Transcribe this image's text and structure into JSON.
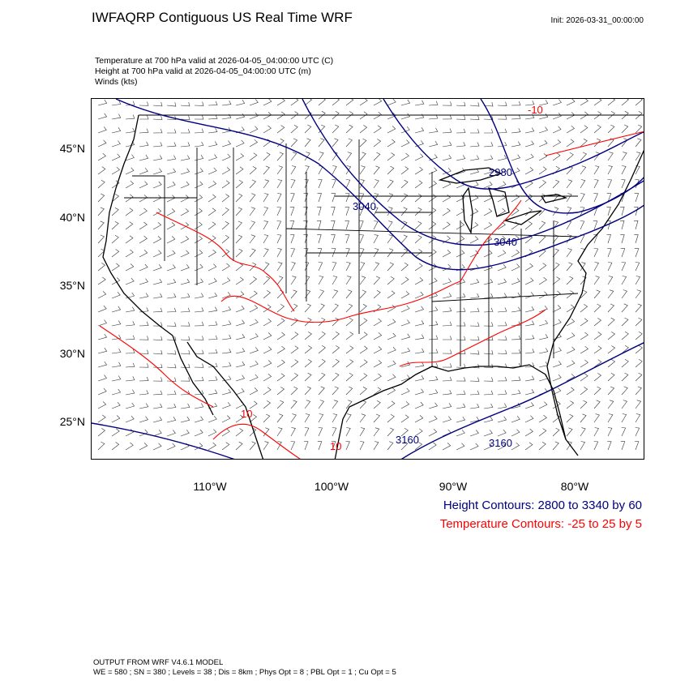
{
  "header": {
    "title": "IWFAQRP Contiguous US Real Time WRF",
    "init": "Init: 2026-03-31_00:00:00",
    "subtitles": [
      "Temperature at 700 hPa valid at 2026-04-05_04:00:00 UTC   (C)",
      "Height at 700 hPa valid at 2026-04-05_04:00:00 UTC   (m)",
      "Winds   (kts)"
    ]
  },
  "map": {
    "lat_labels": [
      "45°N",
      "40°N",
      "35°N",
      "30°N",
      "25°N"
    ],
    "lon_labels": [
      "110°W",
      "100°W",
      "90°W",
      "80°W"
    ],
    "height_contour_labels": [
      "3040",
      "3040",
      "2980",
      "3160",
      "3160"
    ],
    "temperature_contour_labels": [
      "10",
      "10",
      "-10"
    ],
    "colors": {
      "height": "#000080",
      "temperature": "#ff0000",
      "borders": "#000000",
      "wind_barbs": "#333333"
    }
  },
  "legend": {
    "height": "Height Contours: 2800 to 3340 by 60",
    "temperature": "Temperature Contours: -25 to 25 by 5"
  },
  "footer": {
    "line1": "OUTPUT FROM WRF V4.6.1 MODEL",
    "line2": "WE = 580 ; SN = 380 ; Levels = 38 ; Dis = 8km ; Phys Opt = 8 ; PBL Opt = 1 ; Cu Opt = 5"
  }
}
